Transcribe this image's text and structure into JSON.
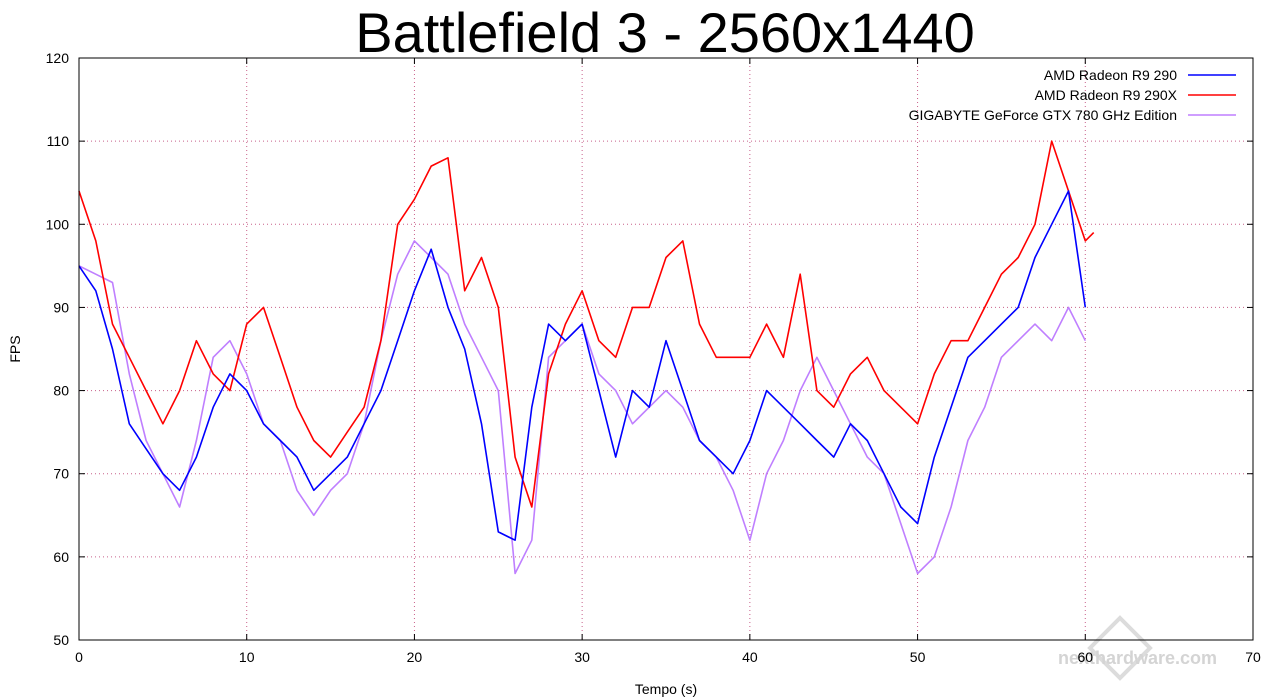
{
  "chart_data": {
    "type": "line",
    "title": "Battlefield 3 - 2560x1440",
    "xlabel": "Tempo (s)",
    "ylabel": "FPS",
    "xlim": [
      0,
      70
    ],
    "ylim": [
      50,
      120
    ],
    "xticks": [
      0,
      10,
      20,
      30,
      40,
      50,
      60,
      70
    ],
    "yticks": [
      50,
      60,
      70,
      80,
      90,
      100,
      110,
      120
    ],
    "grid": true,
    "legend_position": "top-right",
    "series": [
      {
        "name": "AMD Radeon R9 290",
        "color": "#0000ff",
        "x": [
          0,
          1,
          2,
          3,
          4,
          5,
          6,
          7,
          8,
          9,
          10,
          11,
          12,
          13,
          14,
          15,
          16,
          17,
          18,
          19,
          20,
          21,
          22,
          23,
          24,
          25,
          26,
          27,
          28,
          29,
          30,
          31,
          32,
          33,
          34,
          35,
          36,
          37,
          38,
          39,
          40,
          41,
          42,
          43,
          44,
          45,
          46,
          47,
          48,
          49,
          50,
          51,
          52,
          53,
          54,
          55,
          56,
          57,
          58,
          59,
          60
        ],
        "values": [
          95,
          92,
          85,
          76,
          73,
          70,
          68,
          72,
          78,
          82,
          80,
          76,
          74,
          72,
          68,
          70,
          72,
          76,
          80,
          86,
          92,
          97,
          90,
          85,
          76,
          63,
          62,
          78,
          88,
          86,
          88,
          80,
          72,
          80,
          78,
          86,
          80,
          74,
          72,
          70,
          74,
          80,
          78,
          76,
          74,
          72,
          76,
          74,
          70,
          66,
          64,
          72,
          78,
          84,
          86,
          88,
          90,
          96,
          100,
          104,
          90
        ]
      },
      {
        "name": "AMD Radeon R9 290X",
        "color": "#ff0000",
        "x": [
          0,
          1,
          2,
          3,
          4,
          5,
          6,
          7,
          8,
          9,
          10,
          11,
          12,
          13,
          14,
          15,
          16,
          17,
          18,
          19,
          20,
          21,
          22,
          23,
          24,
          25,
          26,
          27,
          28,
          29,
          30,
          31,
          32,
          33,
          34,
          35,
          36,
          37,
          38,
          39,
          40,
          41,
          42,
          43,
          44,
          45,
          46,
          47,
          48,
          49,
          50,
          51,
          52,
          53,
          54,
          55,
          56,
          57,
          58,
          59,
          60,
          60.5
        ],
        "values": [
          104,
          98,
          88,
          84,
          80,
          76,
          80,
          86,
          82,
          80,
          88,
          90,
          84,
          78,
          74,
          72,
          75,
          78,
          86,
          100,
          103,
          107,
          108,
          92,
          96,
          90,
          72,
          66,
          82,
          88,
          92,
          86,
          84,
          90,
          90,
          96,
          98,
          88,
          84,
          84,
          84,
          88,
          84,
          94,
          80,
          78,
          82,
          84,
          80,
          78,
          76,
          82,
          86,
          86,
          90,
          94,
          96,
          100,
          110,
          104,
          98,
          99
        ]
      },
      {
        "name": "GIGABYTE GeForce GTX 780 GHz Edition",
        "color": "#bf7fff",
        "x": [
          0,
          1,
          2,
          3,
          4,
          5,
          6,
          7,
          8,
          9,
          10,
          11,
          12,
          13,
          14,
          15,
          16,
          17,
          18,
          19,
          20,
          21,
          22,
          23,
          24,
          25,
          26,
          27,
          28,
          29,
          30,
          31,
          32,
          33,
          34,
          35,
          36,
          37,
          38,
          39,
          40,
          41,
          42,
          43,
          44,
          45,
          46,
          47,
          48,
          49,
          50,
          51,
          52,
          53,
          54,
          55,
          56,
          57,
          58,
          59,
          60
        ],
        "values": [
          95,
          94,
          93,
          82,
          74,
          70,
          66,
          74,
          84,
          86,
          82,
          76,
          74,
          68,
          65,
          68,
          70,
          76,
          86,
          94,
          98,
          96,
          94,
          88,
          84,
          80,
          58,
          62,
          84,
          86,
          88,
          82,
          80,
          76,
          78,
          80,
          78,
          74,
          72,
          68,
          62,
          70,
          74,
          80,
          84,
          80,
          76,
          72,
          70,
          64,
          58,
          60,
          66,
          74,
          78,
          84,
          86,
          88,
          86,
          90,
          86
        ]
      }
    ]
  },
  "watermark": {
    "text": "nexthardware.com"
  }
}
